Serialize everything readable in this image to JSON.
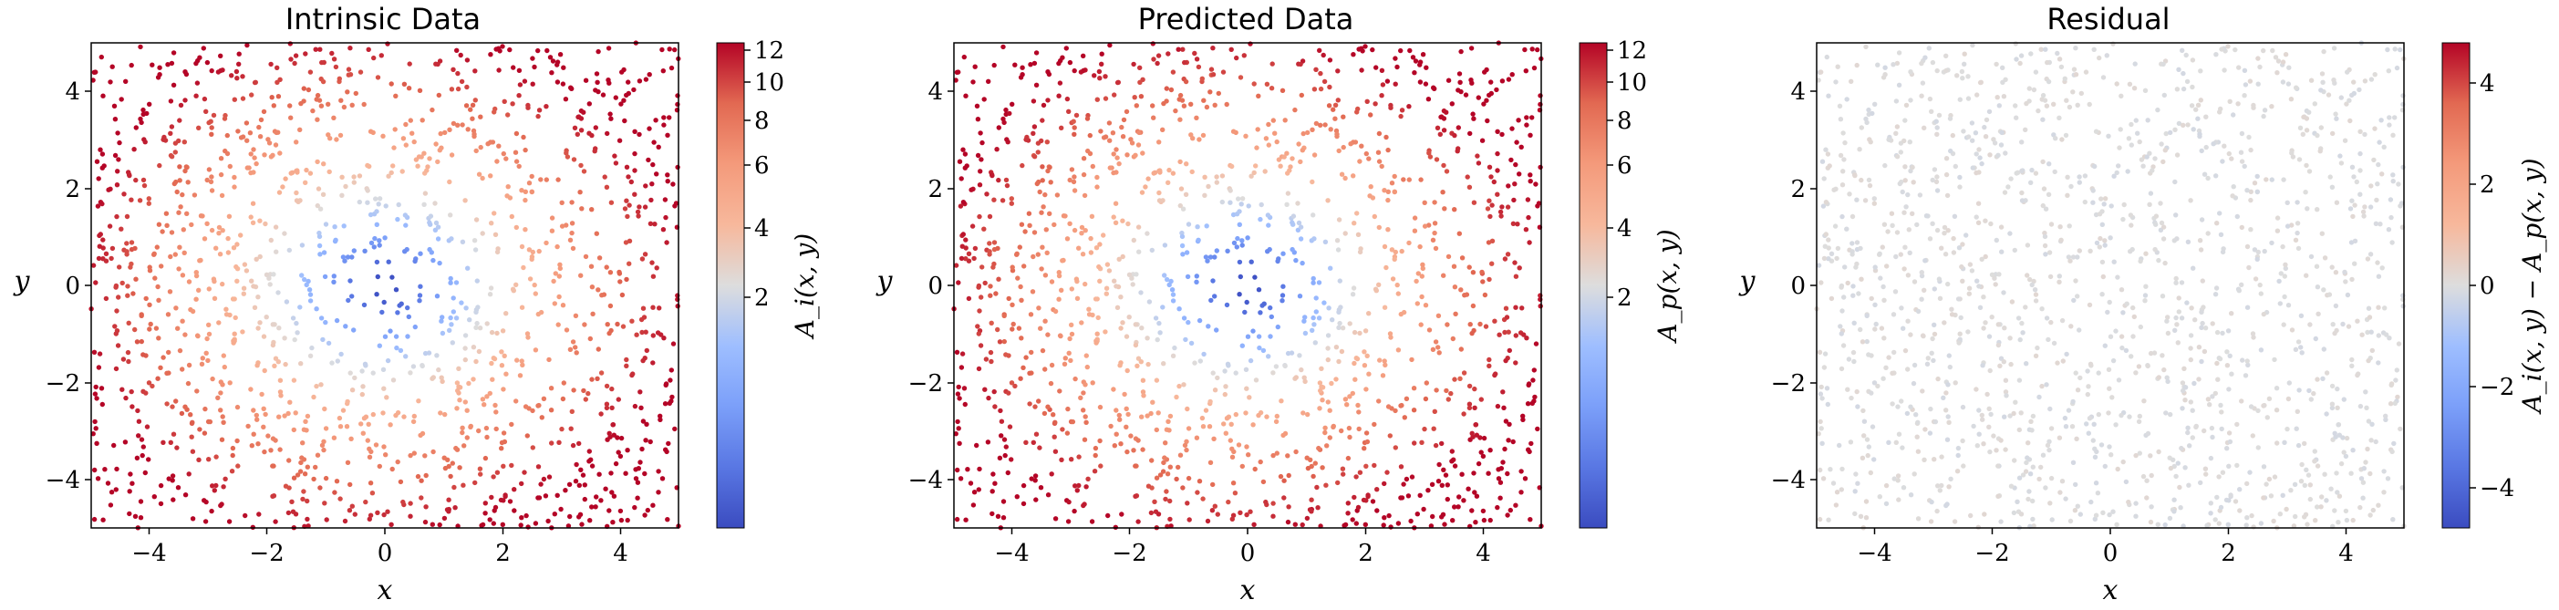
{
  "chart_data": [
    {
      "type": "scatter",
      "title": "Intrinsic Data",
      "xlabel": "x",
      "ylabel": "y",
      "xlim": [
        -5,
        5
      ],
      "ylim": [
        -5,
        5
      ],
      "xticks": [
        "−4",
        "−2",
        "0",
        "2",
        "4"
      ],
      "yticks": [
        "−4",
        "−2",
        "0",
        "2",
        "4"
      ],
      "colormap": "coolwarm",
      "color_scale": "log",
      "clim": [
        0.25,
        12.5
      ],
      "colorbar_label": "A_i(x, y)",
      "colorbar_ticks": [
        "2",
        "4",
        "6",
        "8",
        "10",
        "12"
      ],
      "n_points": 1500,
      "model": "value ≈ 0.25 + 0.45·(x² + y²) (radial bowl, min ≈0.3 at origin, max ≈12 at right-top edge)",
      "summary_points": [
        {
          "x": 0,
          "y": 0,
          "value": 0.3
        },
        {
          "x": 1.5,
          "y": 0.5,
          "value": 1.5
        },
        {
          "x": -4,
          "y": 2,
          "value": 7
        },
        {
          "x": 4.8,
          "y": 2.5,
          "value": 12
        },
        {
          "x": 2,
          "y": 4.8,
          "value": 12
        },
        {
          "x": -4.5,
          "y": -4.5,
          "value": 8
        },
        {
          "x": 4.8,
          "y": -4,
          "value": 9
        }
      ]
    },
    {
      "type": "scatter",
      "title": "Predicted Data",
      "xlabel": "x",
      "ylabel": "y",
      "xlim": [
        -5,
        5
      ],
      "ylim": [
        -5,
        5
      ],
      "xticks": [
        "−4",
        "−2",
        "0",
        "2",
        "4"
      ],
      "yticks": [
        "−4",
        "−2",
        "0",
        "2",
        "4"
      ],
      "colormap": "coolwarm",
      "color_scale": "log",
      "clim": [
        0.25,
        12.5
      ],
      "colorbar_label": "A_p(x, y)",
      "colorbar_ticks": [
        "2",
        "4",
        "6",
        "8",
        "10",
        "12"
      ],
      "n_points": 1500,
      "model": "same radial pattern as intrinsic data",
      "summary_points": [
        {
          "x": 0,
          "y": 0,
          "value": 0.3
        },
        {
          "x": -4,
          "y": 2,
          "value": 7
        },
        {
          "x": 4.8,
          "y": 2.5,
          "value": 12
        }
      ]
    },
    {
      "type": "scatter",
      "title": "Residual",
      "xlabel": "x",
      "ylabel": "y",
      "xlim": [
        -5,
        5
      ],
      "ylim": [
        -5,
        5
      ],
      "xticks": [
        "−4",
        "−2",
        "0",
        "2",
        "4"
      ],
      "yticks": [
        "−4",
        "−2",
        "0",
        "2",
        "4"
      ],
      "colormap": "coolwarm",
      "color_scale": "linear",
      "clim": [
        -4.8,
        4.8
      ],
      "colorbar_label": "A_i(x, y) − A_p(x, y)",
      "colorbar_ticks": [
        "−4",
        "−2",
        "0",
        "2",
        "4"
      ],
      "n_points": 1500,
      "model": "residual ≈ 0 everywhere",
      "summary_points": [
        {
          "x": 0,
          "y": 0,
          "value": 0
        },
        {
          "x": 3,
          "y": 3,
          "value": 0
        },
        {
          "x": -3,
          "y": -3,
          "value": 0
        }
      ]
    }
  ]
}
